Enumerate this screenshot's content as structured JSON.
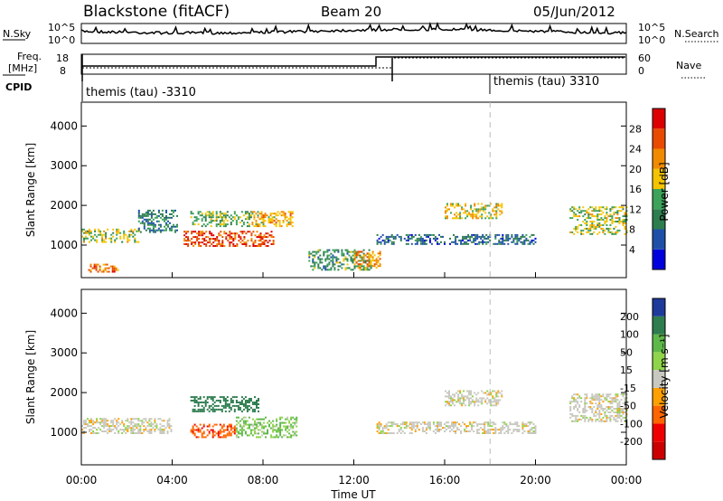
{
  "header": {
    "station": "Blackstone (fitACF)",
    "beam": "Beam 20",
    "date": "05/Jun/2012"
  },
  "noise_panel": {
    "left_label": "N.Sky",
    "right_label": "N.Search",
    "ticks_left": [
      "10^5",
      "10^0"
    ],
    "ticks_right": [
      "10^5",
      "10^0"
    ]
  },
  "freq_panel": {
    "left_label_1": "Freq.",
    "left_label_2": "[MHz]",
    "right_label": "Nave",
    "ticks_left": [
      "18",
      "8"
    ],
    "ticks_right": [
      "60",
      "0"
    ]
  },
  "cpid": {
    "label": "CPID",
    "segments": [
      {
        "start_hour": 0.0,
        "text": "themis (tau) -3310"
      },
      {
        "start_hour": 18.0,
        "text": "themis (tau) 3310"
      }
    ]
  },
  "x_axis": {
    "label": "Time UT",
    "ticks": [
      "00:00",
      "04:00",
      "08:00",
      "12:00",
      "16:00",
      "20:00",
      "00:00"
    ],
    "range_hours": [
      0,
      24
    ]
  },
  "y_axis": {
    "label": "Slant Range [km]",
    "ticks": [
      "1000",
      "2000",
      "3000",
      "4000"
    ],
    "range_km": [
      180,
      4600
    ]
  },
  "power_colorbar": {
    "label": "Power [dB]",
    "ticks": [
      "4",
      "8",
      "12",
      "16",
      "20",
      "24",
      "28"
    ],
    "colors": [
      "#0000dd",
      "#1e50a8",
      "#2e7d4f",
      "#3da25a",
      "#f5c400",
      "#f08a00",
      "#e84a00",
      "#dd0000"
    ]
  },
  "velocity_colorbar": {
    "label": "Velocity [m s⁻¹]",
    "ticks": [
      "200",
      "100",
      "50",
      "15",
      "-15",
      "-50",
      "-100",
      "-200"
    ],
    "colors": [
      "#1e3a9a",
      "#2e7d4f",
      "#5fb84a",
      "#8fd44a",
      "#c8c8c0",
      "#ffa000",
      "#ff6600",
      "#ee0000",
      "#cc0000"
    ]
  },
  "chart_data": {
    "type": "heatmap",
    "x_units": "hours UT",
    "y_units": "km",
    "power_regions": [
      {
        "t": [
          0.0,
          2.5
        ],
        "r": [
          1100,
          1450
        ],
        "dB": 16
      },
      {
        "t": [
          0.3,
          1.6
        ],
        "r": [
          350,
          560
        ],
        "dB": 24
      },
      {
        "t": [
          2.5,
          4.2
        ],
        "r": [
          1350,
          1900
        ],
        "dB": 10
      },
      {
        "t": [
          4.5,
          8.5
        ],
        "r": [
          1000,
          1400
        ],
        "dB": 26
      },
      {
        "t": [
          4.8,
          7.5
        ],
        "r": [
          1500,
          1900
        ],
        "dB": 14
      },
      {
        "t": [
          7.5,
          9.3
        ],
        "r": [
          1500,
          1900
        ],
        "dB": 20
      },
      {
        "t": [
          10.0,
          12.8
        ],
        "r": [
          400,
          900
        ],
        "dB": 12
      },
      {
        "t": [
          12.0,
          13.2
        ],
        "r": [
          450,
          900
        ],
        "dB": 22
      },
      {
        "t": [
          13.0,
          20.0
        ],
        "r": [
          1050,
          1300
        ],
        "dB": 8
      },
      {
        "t": [
          16.0,
          18.5
        ],
        "r": [
          1700,
          2100
        ],
        "dB": 18
      },
      {
        "t": [
          21.5,
          24.0
        ],
        "r": [
          1300,
          2000
        ],
        "dB": 16
      }
    ],
    "velocity_regions": [
      {
        "t": [
          4.8,
          7.8
        ],
        "r": [
          1550,
          1950
        ],
        "v": 120
      },
      {
        "t": [
          4.8,
          6.8
        ],
        "r": [
          900,
          1250
        ],
        "v": -90
      },
      {
        "t": [
          6.8,
          9.5
        ],
        "r": [
          900,
          1400
        ],
        "v": 30
      },
      {
        "t": [
          0.0,
          4.0
        ],
        "r": [
          1000,
          1400
        ],
        "v": 0
      },
      {
        "t": [
          13.0,
          20.0
        ],
        "r": [
          1000,
          1300
        ],
        "v": 0
      },
      {
        "t": [
          16.0,
          18.5
        ],
        "r": [
          1700,
          2100
        ],
        "v": 0
      },
      {
        "t": [
          21.5,
          24.0
        ],
        "r": [
          1300,
          2000
        ],
        "v": 0
      }
    ]
  }
}
